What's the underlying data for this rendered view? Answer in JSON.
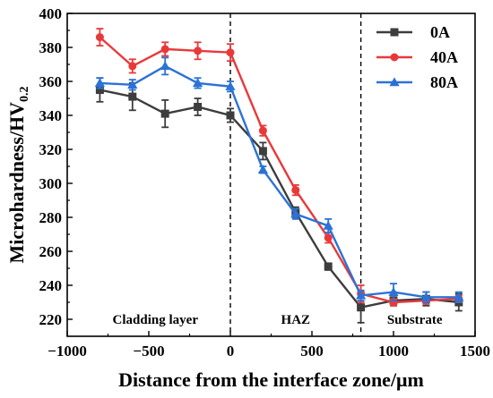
{
  "chart_data": {
    "type": "line",
    "xlabel": "Distance from the interface zone/μm",
    "ylabel_main": "Microhardness/HV",
    "ylabel_sub": "0.2",
    "xlim": [
      -1000,
      1500
    ],
    "ylim": [
      210,
      400
    ],
    "xticks": [
      -1000,
      -500,
      0,
      500,
      1000,
      1500
    ],
    "yticks": [
      220,
      240,
      260,
      280,
      300,
      320,
      340,
      360,
      380,
      400
    ],
    "xtick_labels": [
      "−1000",
      "−500",
      "0",
      "500",
      "1000",
      "1500"
    ],
    "ytick_labels": [
      "220",
      "240",
      "260",
      "280",
      "300",
      "320",
      "340",
      "360",
      "380",
      "400"
    ],
    "regions": [
      {
        "label": "Cladding layer",
        "x_center": -460
      },
      {
        "label": "HAZ",
        "x_center": 400
      },
      {
        "label": "Substrate",
        "x_center": 1130
      }
    ],
    "boundaries": [
      0,
      800
    ],
    "legend_position": "top-right",
    "series": [
      {
        "name": "0A",
        "color": "#3d3d3d",
        "marker": "square",
        "x": [
          -800,
          -600,
          -400,
          -200,
          0,
          200,
          400,
          600,
          800,
          1000,
          1200,
          1400
        ],
        "y": [
          355,
          351,
          341,
          345,
          340,
          319,
          283,
          251,
          227,
          231,
          232,
          230
        ],
        "err": [
          7,
          8,
          8,
          5,
          4,
          5,
          3,
          2,
          9,
          3,
          4,
          5
        ]
      },
      {
        "name": "40A",
        "color": "#e8393a",
        "marker": "circle",
        "x": [
          -800,
          -600,
          -400,
          -200,
          0,
          200,
          400,
          600,
          800,
          1000,
          1200,
          1400
        ],
        "y": [
          386,
          369,
          379,
          378,
          377,
          331,
          296,
          268,
          235,
          230,
          231,
          232
        ],
        "err": [
          5,
          4,
          4,
          5,
          5,
          3,
          3,
          3,
          5,
          2,
          2,
          2
        ]
      },
      {
        "name": "80A",
        "color": "#2c72d6",
        "marker": "triangle",
        "x": [
          -800,
          -600,
          -400,
          -200,
          0,
          200,
          400,
          600,
          800,
          1000,
          1200,
          1400
        ],
        "y": [
          359,
          358,
          369,
          359,
          357,
          308,
          282,
          275,
          234,
          236,
          233,
          233
        ],
        "err": [
          3,
          3,
          5,
          3,
          3,
          2,
          3,
          4,
          3,
          5,
          3,
          3
        ]
      }
    ]
  }
}
